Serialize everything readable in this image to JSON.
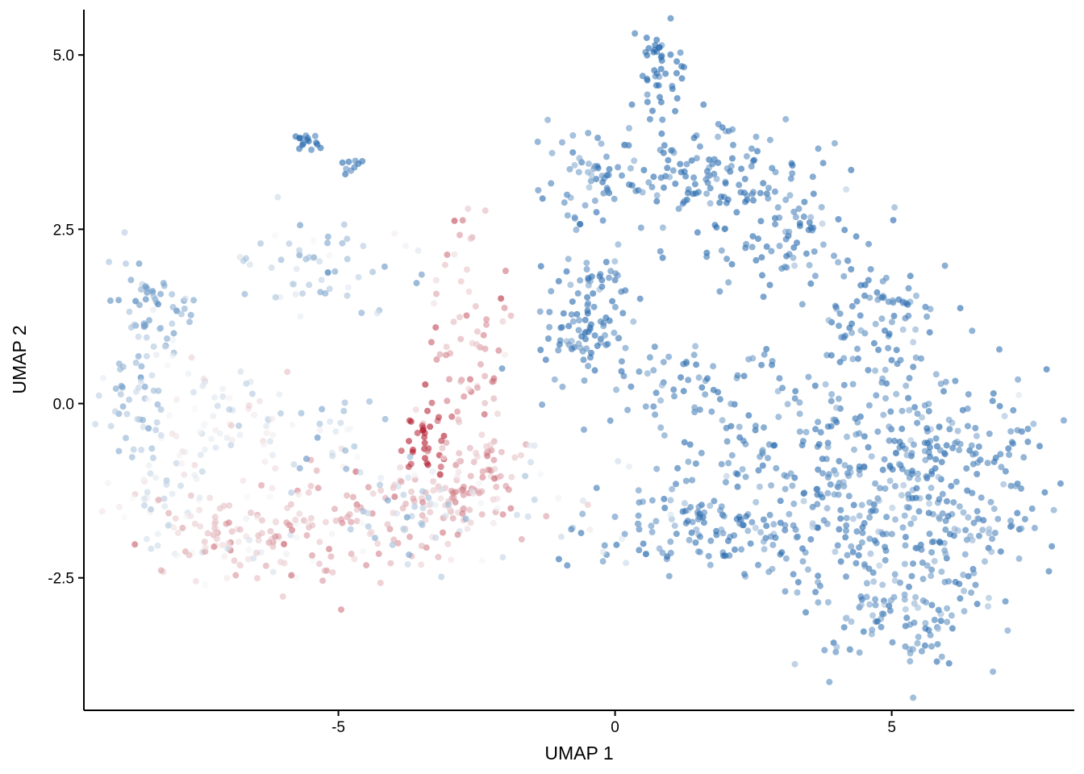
{
  "chart_data": {
    "type": "scatter",
    "title": "",
    "xlabel": "UMAP 1",
    "ylabel": "UMAP 2",
    "xlim": [
      -9.6,
      8.3
    ],
    "ylim": [
      -4.4,
      5.65
    ],
    "x_ticks": [
      -5,
      0,
      5
    ],
    "x_tick_labels": [
      "-5",
      "0",
      "5"
    ],
    "y_ticks": [
      -2.5,
      0,
      2.5,
      5
    ],
    "y_tick_labels": [
      "-2.5",
      "0.0",
      "2.5",
      "5.0"
    ],
    "grid": false,
    "legend": "none",
    "color_scale": {
      "type": "diverging",
      "low": "#2166ac",
      "mid": "#f7f7f7",
      "high": "#b2182b",
      "domain": [
        -1,
        1
      ]
    },
    "point_opacity": 0.6,
    "clusters": [
      {
        "id": "left_arc_top",
        "center": [
          -8.3,
          1.35
        ],
        "spread": [
          0.35,
          0.35
        ],
        "count": 45,
        "value": -0.55
      },
      {
        "id": "left_arc_side",
        "center": [
          -8.6,
          0.2
        ],
        "spread": [
          0.3,
          0.7
        ],
        "count": 55,
        "value": -0.45
      },
      {
        "id": "left_arc_bottom",
        "center": [
          -8.0,
          -1.3
        ],
        "spread": [
          0.45,
          0.6
        ],
        "count": 55,
        "value": -0.1
      },
      {
        "id": "bottom_band_left",
        "center": [
          -7.0,
          -1.9
        ],
        "spread": [
          0.7,
          0.35
        ],
        "count": 70,
        "value": 0.25
      },
      {
        "id": "bottom_band_mid",
        "center": [
          -5.5,
          -1.8
        ],
        "spread": [
          0.8,
          0.45
        ],
        "count": 80,
        "value": 0.3
      },
      {
        "id": "left_inner",
        "center": [
          -7.0,
          -0.2
        ],
        "spread": [
          0.7,
          0.5
        ],
        "count": 70,
        "value": -0.05
      },
      {
        "id": "upper_strand",
        "center": [
          -5.0,
          1.95
        ],
        "spread": [
          0.9,
          0.35
        ],
        "count": 55,
        "value": -0.4
      },
      {
        "id": "upper_islet_a",
        "center": [
          -5.6,
          3.75
        ],
        "spread": [
          0.12,
          0.07
        ],
        "count": 16,
        "value": -0.95
      },
      {
        "id": "upper_islet_b",
        "center": [
          -4.8,
          3.42
        ],
        "spread": [
          0.15,
          0.08
        ],
        "count": 9,
        "value": -0.9
      },
      {
        "id": "middle_column",
        "center": [
          -2.6,
          1.2
        ],
        "spread": [
          0.35,
          0.9
        ],
        "count": 65,
        "value": 0.4
      },
      {
        "id": "hot_core",
        "center": [
          -3.4,
          -0.5
        ],
        "spread": [
          0.2,
          0.3
        ],
        "count": 35,
        "value": 0.95
      },
      {
        "id": "lower_mixed",
        "center": [
          -3.2,
          -1.4
        ],
        "spread": [
          0.8,
          0.45
        ],
        "count": 110,
        "value": 0.3
      },
      {
        "id": "lower_right_warm",
        "center": [
          -2.6,
          -1.1
        ],
        "spread": [
          0.35,
          0.4
        ],
        "count": 45,
        "value": 0.35
      },
      {
        "id": "center_stem",
        "center": [
          -4.9,
          -0.5
        ],
        "spread": [
          0.35,
          0.5
        ],
        "count": 25,
        "value": -0.35
      },
      {
        "id": "mid_blue",
        "center": [
          -4.0,
          -1.6
        ],
        "spread": [
          0.5,
          0.4
        ],
        "count": 30,
        "value": -0.3
      },
      {
        "id": "top_tip",
        "center": [
          0.8,
          4.8
        ],
        "spread": [
          0.2,
          0.3
        ],
        "count": 45,
        "value": -0.95
      },
      {
        "id": "top_upper",
        "center": [
          1.4,
          3.3
        ],
        "spread": [
          1.1,
          0.4
        ],
        "count": 150,
        "value": -0.9
      },
      {
        "id": "upper_ridge",
        "center": [
          3.2,
          2.2
        ],
        "spread": [
          0.8,
          0.45
        ],
        "count": 80,
        "value": -0.85
      },
      {
        "id": "left_cap",
        "center": [
          -0.5,
          3.2
        ],
        "spread": [
          0.5,
          0.35
        ],
        "count": 35,
        "value": -0.7
      },
      {
        "id": "left_lobe",
        "center": [
          -0.6,
          1.2
        ],
        "spread": [
          0.45,
          0.7
        ],
        "count": 110,
        "value": -0.85
      },
      {
        "id": "diagonal_band",
        "center": [
          1.3,
          0.4
        ],
        "spread": [
          0.7,
          0.4
        ],
        "count": 45,
        "value": -0.85
      },
      {
        "id": "right_flank",
        "center": [
          4.8,
          1.1
        ],
        "spread": [
          0.55,
          0.6
        ],
        "count": 80,
        "value": -0.85
      },
      {
        "id": "mid_body",
        "center": [
          3.0,
          -0.6
        ],
        "spread": [
          1.1,
          0.6
        ],
        "count": 120,
        "value": -0.85
      },
      {
        "id": "lower_body",
        "center": [
          2.0,
          -1.8
        ],
        "spread": [
          1.3,
          0.4
        ],
        "count": 160,
        "value": -0.8
      },
      {
        "id": "right_lobe",
        "center": [
          5.7,
          -1.2
        ],
        "spread": [
          1.1,
          0.95
        ],
        "count": 360,
        "value": -0.8
      },
      {
        "id": "bottom_lobe",
        "center": [
          5.0,
          -3.0
        ],
        "spread": [
          0.9,
          0.4
        ],
        "count": 90,
        "value": -0.75
      },
      {
        "id": "sparse_bridge",
        "center": [
          -1.2,
          -1.6
        ],
        "spread": [
          1.0,
          0.5
        ],
        "count": 25,
        "value": -0.2
      }
    ]
  }
}
